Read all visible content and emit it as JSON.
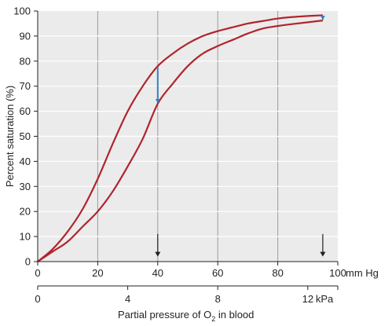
{
  "chart_data": {
    "type": "line",
    "ylabel": "Percent saturation (%)",
    "xlabel_pre": "Partial pressure of O",
    "xlabel_sub": "2",
    "xlabel_post": " in blood",
    "x_unit": "mm Hg",
    "x2_unit": "kPa",
    "xlim": [
      0,
      100
    ],
    "ylim": [
      0,
      100
    ],
    "x_ticks": [
      0,
      20,
      40,
      60,
      80,
      100
    ],
    "y_ticks": [
      0,
      10,
      20,
      30,
      40,
      50,
      60,
      70,
      80,
      90,
      100
    ],
    "x2_ticks": [
      0,
      4,
      8,
      12
    ],
    "grid": true,
    "colors": {
      "plot_bg": "#ebebeb",
      "grid": "#ffffff",
      "curve": "#b0252c",
      "arrow_blue": "#3a7ec0",
      "axis": "#231f20"
    },
    "series": [
      {
        "x": [
          0,
          5,
          10,
          15,
          20,
          25,
          30,
          35,
          40,
          45,
          50,
          55,
          60,
          65,
          70,
          75,
          80,
          85,
          90,
          95
        ],
        "values": [
          0,
          5,
          12,
          21,
          33,
          47,
          60,
          70,
          78,
          83,
          87,
          90,
          92,
          93.5,
          95,
          96,
          97,
          97.6,
          98,
          98.3
        ]
      },
      {
        "x": [
          0,
          5,
          10,
          15,
          20,
          25,
          30,
          35,
          40,
          45,
          50,
          55,
          60,
          65,
          70,
          75,
          80,
          85,
          90,
          95
        ],
        "values": [
          0,
          4,
          8,
          14,
          20,
          28,
          38,
          49,
          63,
          71,
          78,
          83,
          86,
          88.5,
          91,
          93,
          94,
          94.8,
          95.5,
          96.2
        ]
      }
    ],
    "markers": [
      {
        "x": 40,
        "from": 78,
        "to": 63
      },
      {
        "x": 95,
        "from": 98.3,
        "to": 96.2
      }
    ]
  }
}
